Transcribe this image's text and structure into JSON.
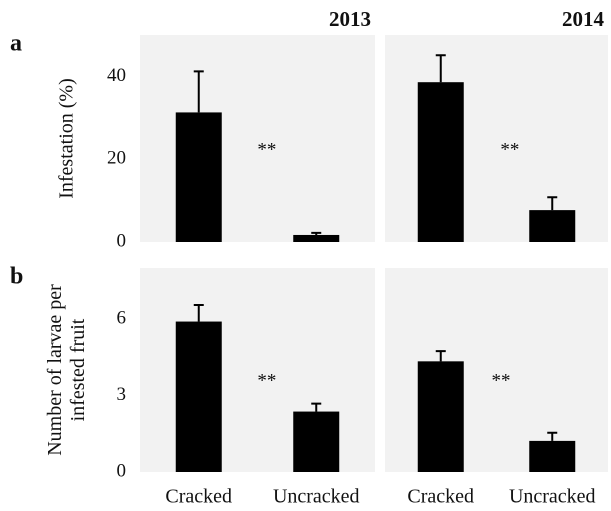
{
  "chart_data": [
    {
      "type": "bar",
      "title": "2013",
      "panel_label": "a",
      "ylabel": [
        "Infestation (%)"
      ],
      "categories": [
        null,
        null
      ],
      "values": [
        31.3,
        1.7
      ],
      "errors": [
        9.9,
        0.5
      ],
      "color": "#000000",
      "background": "#f2f2f2",
      "annotation": "**",
      "ylim": [
        0,
        50
      ],
      "yticks": [
        0,
        20,
        40
      ],
      "grid": false
    },
    {
      "type": "bar",
      "title": "2014",
      "categories": [
        null,
        null
      ],
      "values": [
        38.6,
        7.7
      ],
      "errors": [
        6.5,
        3.1
      ],
      "color": "#000000",
      "background": "#f2f2f2",
      "annotation": "**",
      "ylim": [
        0,
        50
      ],
      "grid": false
    },
    {
      "type": "bar",
      "panel_label": "b",
      "ylabel": [
        "Number of larvae per",
        "infested fruit"
      ],
      "categories": [
        "Cracked",
        "Uncracked"
      ],
      "values": [
        5.9,
        2.37
      ],
      "errors": [
        0.65,
        0.31
      ],
      "color": "#000000",
      "background": "#f2f2f2",
      "annotation": "**",
      "ylim": [
        0,
        8
      ],
      "yticks": [
        0,
        3,
        6
      ],
      "grid": false
    },
    {
      "type": "bar",
      "categories": [
        "Cracked",
        "Uncracked"
      ],
      "values": [
        4.34,
        1.22
      ],
      "errors": [
        0.4,
        0.32
      ],
      "color": "#000000",
      "background": "#f2f2f2",
      "annotation": "**",
      "ylim": [
        0,
        8
      ],
      "grid": false
    }
  ]
}
